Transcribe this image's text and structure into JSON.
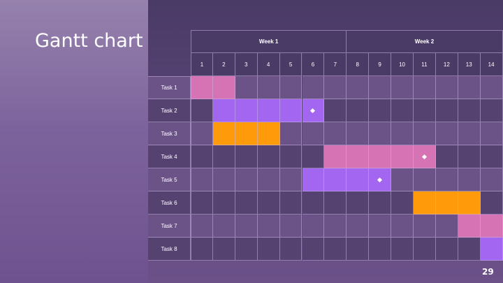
{
  "slide": {
    "title": "Gantt chart",
    "page_number": "29"
  },
  "gantt": {
    "weeks": [
      {
        "label": "Week 1",
        "days": 7
      },
      {
        "label": "Week 2",
        "days": 7
      }
    ],
    "days": [
      "1",
      "2",
      "3",
      "4",
      "5",
      "6",
      "7",
      "8",
      "9",
      "10",
      "11",
      "12",
      "13",
      "14"
    ],
    "colors": {
      "pink": "#d673b4",
      "violet": "#a266f0",
      "orange": "#ff9a0a",
      "milestone": "#ffffff"
    },
    "tasks": [
      {
        "label": "Task 1",
        "start_day": 1,
        "end_day": 2,
        "color": "pink",
        "milestone_day": null
      },
      {
        "label": "Task 2",
        "start_day": 2,
        "end_day": 6,
        "color": "violet",
        "milestone_day": 6
      },
      {
        "label": "Task 3",
        "start_day": 2,
        "end_day": 4,
        "color": "orange",
        "milestone_day": null
      },
      {
        "label": "Task 4",
        "start_day": 7,
        "end_day": 11,
        "color": "pink",
        "milestone_day": 11
      },
      {
        "label": "Task 5",
        "start_day": 6,
        "end_day": 9,
        "color": "violet",
        "milestone_day": 9
      },
      {
        "label": "Task 6",
        "start_day": 11,
        "end_day": 13,
        "color": "orange",
        "milestone_day": null
      },
      {
        "label": "Task 7",
        "start_day": 13,
        "end_day": 14,
        "color": "pink",
        "milestone_day": null
      },
      {
        "label": "Task 8",
        "start_day": 14,
        "end_day": 14,
        "color": "violet",
        "milestone_day": null
      }
    ]
  }
}
